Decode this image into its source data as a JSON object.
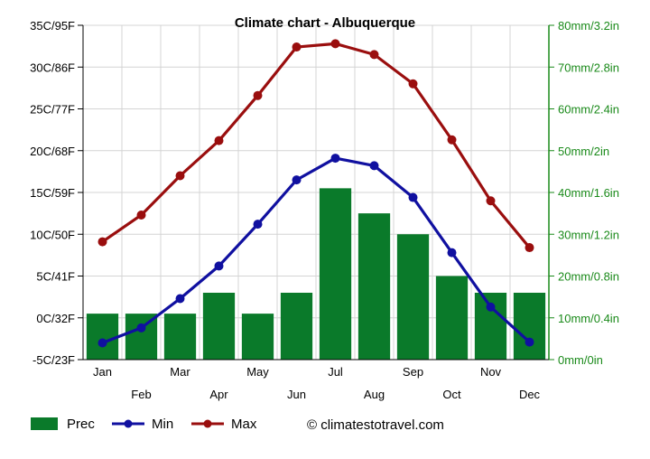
{
  "chart_data": {
    "type": "bar+line",
    "title": "Climate chart - Albuquerque",
    "categories": [
      "Jan",
      "Feb",
      "Mar",
      "Apr",
      "May",
      "Jun",
      "Jul",
      "Aug",
      "Sep",
      "Oct",
      "Nov",
      "Dec"
    ],
    "left_axis": {
      "unit": "C",
      "range": [
        -5,
        35
      ],
      "tick_labels": [
        "-5C/23F",
        "0C/32F",
        "5C/41F",
        "10C/50F",
        "15C/59F",
        "20C/68F",
        "25C/77F",
        "30C/86F",
        "35C/95F"
      ],
      "color": "#000000"
    },
    "right_axis": {
      "unit": "mm",
      "range": [
        0,
        80
      ],
      "tick_labels": [
        "0mm/0in",
        "10mm/0.4in",
        "20mm/0.8in",
        "30mm/1.2in",
        "40mm/1.6in",
        "50mm/2in",
        "60mm/2.4in",
        "70mm/2.8in",
        "80mm/3.2in"
      ],
      "color": "#1a8a1a"
    },
    "series": [
      {
        "name": "Prec",
        "kind": "bar",
        "axis": "right",
        "color": "#0a7a2a",
        "values": [
          11,
          11,
          11,
          16,
          11,
          16,
          41,
          35,
          30,
          20,
          16,
          16
        ]
      },
      {
        "name": "Min",
        "kind": "line",
        "axis": "left",
        "color": "#1010a0",
        "values": [
          -3.0,
          -1.2,
          2.3,
          6.2,
          11.2,
          16.5,
          19.1,
          18.2,
          14.4,
          7.8,
          1.3,
          -2.9
        ]
      },
      {
        "name": "Max",
        "kind": "line",
        "axis": "left",
        "color": "#9a0e0e",
        "values": [
          9.1,
          12.3,
          17.0,
          21.2,
          26.6,
          32.4,
          32.8,
          31.5,
          28.0,
          21.3,
          14.0,
          8.4
        ]
      }
    ],
    "grid": true,
    "legend_position": "bottom-left"
  },
  "credit": "© climatestotravel.com"
}
